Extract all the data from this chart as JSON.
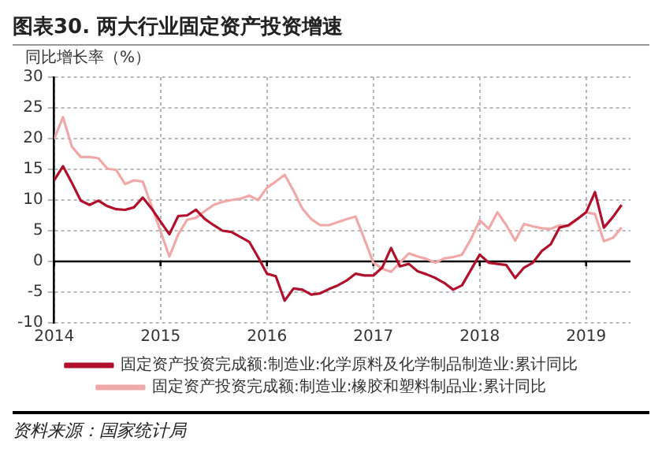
{
  "chart_data": {
    "type": "line",
    "title": "图表30. 两大行业固定资产投资增速",
    "ylabel": "同比增长率（%）",
    "x": [
      "2014-01",
      "2014-02",
      "2014-03",
      "2014-04",
      "2014-05",
      "2014-06",
      "2014-07",
      "2014-08",
      "2014-09",
      "2014-10",
      "2014-11",
      "2014-12",
      "2015-01",
      "2015-02",
      "2015-03",
      "2015-04",
      "2015-05",
      "2015-06",
      "2015-07",
      "2015-08",
      "2015-09",
      "2015-10",
      "2015-11",
      "2015-12",
      "2016-01",
      "2016-02",
      "2016-03",
      "2016-04",
      "2016-05",
      "2016-06",
      "2016-07",
      "2016-08",
      "2016-09",
      "2016-10",
      "2016-11",
      "2016-12",
      "2017-01",
      "2017-02",
      "2017-03",
      "2017-04",
      "2017-05",
      "2017-06",
      "2017-07",
      "2017-08",
      "2017-09",
      "2017-10",
      "2017-11",
      "2017-12",
      "2018-01",
      "2018-02",
      "2018-03",
      "2018-04",
      "2018-05",
      "2018-06",
      "2018-07",
      "2018-08",
      "2018-09",
      "2018-10",
      "2018-11",
      "2018-12",
      "2019-01",
      "2019-02",
      "2019-03",
      "2019-04",
      "2019-05"
    ],
    "series": [
      {
        "name": "固定资产投资完成额:制造业:化学原料及化学制品制造业:累计同比",
        "color": "#b0102c",
        "values": [
          13.2,
          15.5,
          12.8,
          9.9,
          9.2,
          9.9,
          9.0,
          8.5,
          8.4,
          8.8,
          10.4,
          8.6,
          6.5,
          4.4,
          7.4,
          7.5,
          8.4,
          6.9,
          5.9,
          5.0,
          4.8,
          4.0,
          3.2,
          0.7,
          -2.0,
          -2.4,
          -6.4,
          -4.4,
          -4.6,
          -5.4,
          -5.2,
          -4.5,
          -3.9,
          -3.1,
          -2.0,
          -2.3,
          -2.3,
          -1.0,
          2.2,
          -0.8,
          -0.4,
          -1.6,
          -2.1,
          -2.7,
          -3.5,
          -4.6,
          -3.9,
          -1.4,
          1.1,
          -0.2,
          -0.4,
          -0.6,
          -2.7,
          -1.0,
          -0.2,
          1.7,
          2.8,
          5.5,
          5.9,
          6.9,
          8.0,
          11.3,
          5.5,
          7.2,
          9.2
        ]
      },
      {
        "name": "固定资产投资完成额:制造业:橡胶和塑料制品业:累计同比",
        "color": "#f0a8a8",
        "values": [
          19.9,
          23.5,
          18.7,
          17.0,
          17.0,
          16.8,
          15.1,
          14.9,
          12.6,
          13.2,
          13.0,
          9.0,
          4.9,
          0.8,
          4.4,
          6.8,
          7.1,
          8.2,
          9.2,
          9.7,
          10.0,
          10.2,
          10.7,
          10.0,
          12.0,
          13.0,
          14.1,
          11.5,
          8.6,
          6.9,
          5.9,
          5.9,
          6.4,
          6.9,
          7.3,
          3.6,
          -0.2,
          -1.2,
          -1.7,
          -0.2,
          1.3,
          0.8,
          0.4,
          -0.2,
          0.5,
          0.7,
          1.1,
          3.6,
          6.7,
          5.3,
          8.0,
          5.9,
          3.4,
          6.1,
          5.7,
          5.4,
          5.3,
          5.9,
          5.7,
          6.9,
          8.0,
          7.7,
          3.3,
          3.8,
          5.5
        ]
      }
    ],
    "xlim": [
      "2014-01",
      "2019-06"
    ],
    "xticks": [
      "2014",
      "2015",
      "2016",
      "2017",
      "2018",
      "2019"
    ],
    "ylim": [
      -10,
      30
    ],
    "yticks": [
      -10,
      -5,
      0,
      5,
      10,
      15,
      20,
      25,
      30
    ],
    "ref_lines": [
      {
        "axis": "y",
        "value": 0,
        "color": "#000000"
      }
    ],
    "grid": true,
    "legend": "bottom",
    "marker": "none",
    "line_style": "solid",
    "annotations": [
      "资料来源：国家统计局"
    ]
  }
}
